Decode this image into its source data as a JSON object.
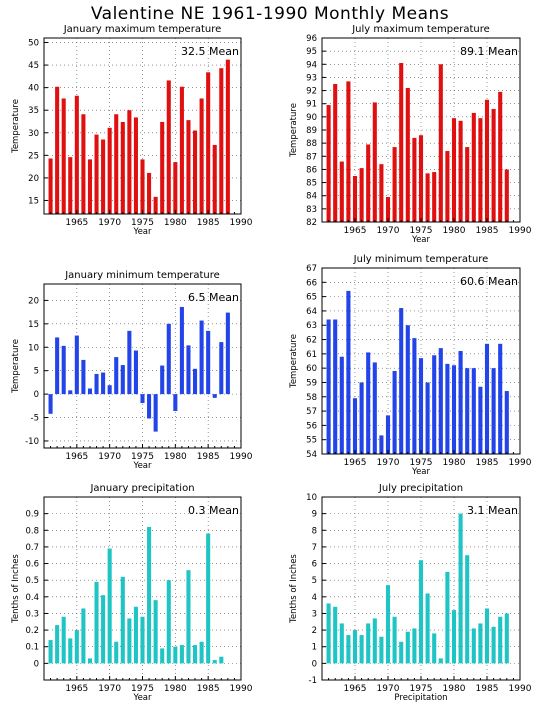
{
  "page_title": "Valentine NE  1961-1990 Monthly Means",
  "chart_data": [
    {
      "type": "bar",
      "title": "January maximum temperature",
      "mean_label": "32.5 Mean",
      "xlabel": "Year",
      "ylabel": "Temperature",
      "color": "#e01010",
      "x": [
        1961,
        1962,
        1963,
        1964,
        1965,
        1966,
        1967,
        1968,
        1969,
        1970,
        1971,
        1972,
        1973,
        1974,
        1975,
        1976,
        1977,
        1978,
        1979,
        1980,
        1981,
        1982,
        1983,
        1984,
        1985,
        1986,
        1987,
        1988,
        1989,
        1990
      ],
      "values": [
        24.3,
        40.2,
        37.6,
        24.6,
        38.2,
        34.1,
        24.1,
        29.6,
        28.5,
        31.1,
        34.1,
        32.4,
        35.0,
        33.4,
        24.1,
        21.1,
        15.8,
        32.4,
        41.6,
        23.5,
        40.2,
        32.8,
        30.5,
        37.6,
        43.4,
        27.3,
        44.3,
        46.2,
        null,
        null
      ],
      "xlim": [
        1960,
        1990
      ],
      "xticks": [
        1965,
        1970,
        1975,
        1980,
        1985,
        1990
      ],
      "ylim": [
        12,
        51
      ],
      "yticks": [
        15,
        20,
        25,
        30,
        35,
        40,
        45,
        50
      ],
      "grid": true
    },
    {
      "type": "bar",
      "title": "July maximum temperature",
      "mean_label": "89.1 Mean",
      "xlabel": "Year",
      "ylabel": "Temperature",
      "color": "#e01010",
      "x": [
        1961,
        1962,
        1963,
        1964,
        1965,
        1966,
        1967,
        1968,
        1969,
        1970,
        1971,
        1972,
        1973,
        1974,
        1975,
        1976,
        1977,
        1978,
        1979,
        1980,
        1981,
        1982,
        1983,
        1984,
        1985,
        1986,
        1987,
        1988,
        1989,
        1990
      ],
      "values": [
        90.9,
        92.5,
        86.6,
        92.7,
        85.5,
        86.1,
        87.9,
        91.1,
        86.4,
        83.9,
        87.7,
        94.1,
        92.2,
        88.4,
        88.6,
        85.7,
        85.8,
        94.0,
        87.4,
        89.9,
        89.7,
        87.7,
        90.3,
        89.9,
        91.3,
        90.6,
        91.9,
        86.0,
        null,
        null
      ],
      "xlim": [
        1960,
        1990
      ],
      "xticks": [
        1965,
        1970,
        1975,
        1980,
        1985,
        1990
      ],
      "ylim": [
        82,
        96
      ],
      "yticks": [
        82,
        83,
        84,
        85,
        86,
        87,
        88,
        89,
        90,
        91,
        92,
        93,
        94,
        95,
        96
      ],
      "grid": true
    },
    {
      "type": "bar",
      "title": "January minimum temperature",
      "mean_label": "6.5 Mean",
      "xlabel": "Year",
      "ylabel": "Temperature",
      "color": "#2244e8",
      "x": [
        1961,
        1962,
        1963,
        1964,
        1965,
        1966,
        1967,
        1968,
        1969,
        1970,
        1971,
        1972,
        1973,
        1974,
        1975,
        1976,
        1977,
        1978,
        1979,
        1980,
        1981,
        1982,
        1983,
        1984,
        1985,
        1986,
        1987,
        1988,
        1989,
        1990
      ],
      "values": [
        -4.2,
        12.1,
        10.3,
        0.8,
        12.5,
        7.3,
        1.2,
        4.3,
        4.6,
        1.9,
        7.9,
        6.2,
        13.5,
        9.3,
        -1.9,
        -5.2,
        -8.0,
        6.1,
        15.0,
        -3.6,
        18.6,
        10.4,
        5.4,
        15.7,
        13.5,
        -0.8,
        11.1,
        17.4,
        null,
        null
      ],
      "xlim": [
        1960,
        1990
      ],
      "xticks": [
        1965,
        1970,
        1975,
        1980,
        1985,
        1990
      ],
      "ylim": [
        -11.5,
        23.5
      ],
      "yticks": [
        -10,
        -5,
        0,
        5,
        10,
        15,
        20
      ],
      "grid": true
    },
    {
      "type": "bar",
      "title": "July minimum temperature",
      "mean_label": "60.6 Mean",
      "xlabel": "Year",
      "ylabel": "Temperature",
      "color": "#2244e8",
      "x": [
        1961,
        1962,
        1963,
        1964,
        1965,
        1966,
        1967,
        1968,
        1969,
        1970,
        1971,
        1972,
        1973,
        1974,
        1975,
        1976,
        1977,
        1978,
        1979,
        1980,
        1981,
        1982,
        1983,
        1984,
        1985,
        1986,
        1987,
        1988,
        1989,
        1990
      ],
      "values": [
        63.4,
        63.4,
        60.8,
        65.4,
        57.9,
        59.0,
        61.1,
        60.4,
        55.3,
        56.7,
        59.8,
        64.2,
        63.0,
        62.1,
        60.7,
        59.0,
        60.9,
        61.4,
        60.3,
        60.2,
        61.2,
        60.0,
        60.0,
        58.7,
        61.7,
        60.0,
        61.7,
        58.4,
        null,
        null
      ],
      "xlim": [
        1960,
        1990
      ],
      "xticks": [
        1965,
        1970,
        1975,
        1980,
        1985,
        1990
      ],
      "ylim": [
        54,
        67
      ],
      "yticks": [
        54,
        55,
        56,
        57,
        58,
        59,
        60,
        61,
        62,
        63,
        64,
        65,
        66,
        67
      ],
      "grid": true
    },
    {
      "type": "bar",
      "title": "January precipitation",
      "mean_label": "0.3 Mean",
      "xlabel": "Year",
      "ylabel": "Tenths of Inches",
      "color": "#1fc4c4",
      "x": [
        1961,
        1962,
        1963,
        1964,
        1965,
        1966,
        1967,
        1968,
        1969,
        1970,
        1971,
        1972,
        1973,
        1974,
        1975,
        1976,
        1977,
        1978,
        1979,
        1980,
        1981,
        1982,
        1983,
        1984,
        1985,
        1986,
        1987,
        1988,
        1989,
        1990
      ],
      "values": [
        0.14,
        0.23,
        0.28,
        0.15,
        0.2,
        0.33,
        0.03,
        0.49,
        0.41,
        0.69,
        0.13,
        0.52,
        0.27,
        0.34,
        0.28,
        0.82,
        0.38,
        0.09,
        0.5,
        0.1,
        0.11,
        0.56,
        0.11,
        0.13,
        0.78,
        0.02,
        0.04,
        null,
        null,
        null
      ],
      "xlim": [
        1960,
        1990
      ],
      "xticks": [
        1965,
        1970,
        1975,
        1980,
        1985,
        1990
      ],
      "ylim": [
        -0.1,
        1.0
      ],
      "yticks": [
        0,
        0.1,
        0.2,
        0.3,
        0.4,
        0.5,
        0.6,
        0.7,
        0.8,
        0.9
      ],
      "ytick_labels": [
        "0",
        "0.1",
        "0.2",
        "0.3",
        "0.4",
        "0.5",
        "0.6",
        "0.7",
        "0.8",
        "0.9"
      ],
      "grid": true
    },
    {
      "type": "bar",
      "title": "July precipitation",
      "mean_label": "3.1 Mean",
      "xlabel": "Precipitation",
      "ylabel": "Tenths of Inches",
      "color": "#1fc4c4",
      "x": [
        1961,
        1962,
        1963,
        1964,
        1965,
        1966,
        1967,
        1968,
        1969,
        1970,
        1971,
        1972,
        1973,
        1974,
        1975,
        1976,
        1977,
        1978,
        1979,
        1980,
        1981,
        1982,
        1983,
        1984,
        1985,
        1986,
        1987,
        1988,
        1989,
        1990
      ],
      "values": [
        3.6,
        3.4,
        2.4,
        1.7,
        2.0,
        1.7,
        2.4,
        2.7,
        1.6,
        4.7,
        2.8,
        1.3,
        1.9,
        2.1,
        6.2,
        4.2,
        1.8,
        0.3,
        5.5,
        3.2,
        9.0,
        6.5,
        2.1,
        2.4,
        3.3,
        2.2,
        2.8,
        3.0,
        null,
        null
      ],
      "xlim": [
        1960,
        1990
      ],
      "xticks": [
        1965,
        1970,
        1975,
        1980,
        1985,
        1990
      ],
      "ylim": [
        -1,
        10
      ],
      "yticks": [
        -1,
        0,
        1,
        2,
        3,
        4,
        5,
        6,
        7,
        8,
        9,
        10
      ],
      "grid": true
    }
  ]
}
